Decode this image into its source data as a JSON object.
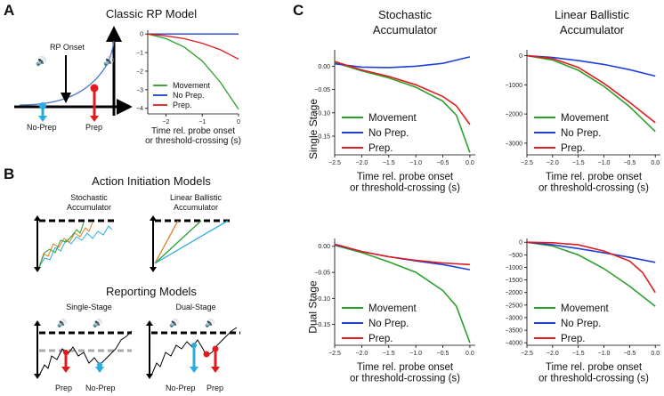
{
  "panel_labels": {
    "a": "A",
    "b": "B",
    "c": "C"
  },
  "panel_a": {
    "title": "Classic RP Model",
    "rp_onset": "RP Onset",
    "no_prep": "No-Prep",
    "prep": "Prep"
  },
  "panel_b": {
    "title_action": "Action Initiation Models",
    "stoch_line1": "Stochastic",
    "stoch_line2": "Accumulator",
    "lba_line1": "Linear Ballistic",
    "lba_line2": "Accumulator",
    "title_reporting": "Reporting Models",
    "single_stage": "Single-Stage",
    "dual_stage": "Dual-Stage",
    "prep": "Prep",
    "no_prep": "No-Prep"
  },
  "panel_c": {
    "col1_line1": "Stochastic",
    "col1_line2": "Accumulator",
    "col2_line1": "Linear Ballistic",
    "col2_line2": "Accumulator",
    "row1": "Single Stage",
    "row2": "Dual Stage"
  },
  "colors": {
    "movement": "#2ca02c",
    "no_prep": "#1f3fd6",
    "prep": "#e41a1c",
    "cyan": "#29abe2"
  },
  "chart_data": [
    {
      "id": "A",
      "type": "line",
      "xlabel_line1": "Time rel. probe onset",
      "xlabel_line2": "or threshold-crossing (s)",
      "xlim": [
        -2.5,
        0
      ],
      "ylim": [
        -4.3,
        0.2
      ],
      "xticks": [
        -2,
        -1,
        0
      ],
      "xtick_labels": [
        "−2",
        "−1",
        "0"
      ],
      "yticks": [
        0,
        -1,
        -2,
        -3,
        -4
      ],
      "ytick_labels": [
        "0",
        "−1",
        "−2",
        "−3",
        "−4"
      ],
      "legend_pos": "bottom-left",
      "series": [
        {
          "name": "Movement",
          "color": "#2ca02c",
          "x": [
            -2.5,
            -2,
            -1.5,
            -1,
            -0.5,
            0
          ],
          "y": [
            0,
            -0.25,
            -0.7,
            -1.45,
            -2.6,
            -4.05
          ]
        },
        {
          "name": "No Prep.",
          "color": "#1f3fd6",
          "x": [
            -2.5,
            -2,
            -1.5,
            -1,
            -0.5,
            0
          ],
          "y": [
            0,
            0,
            0,
            0,
            0,
            0
          ]
        },
        {
          "name": "Prep.",
          "color": "#e41a1c",
          "x": [
            -2.5,
            -2,
            -1.5,
            -1,
            -0.5,
            0
          ],
          "y": [
            0,
            -0.1,
            -0.25,
            -0.5,
            -0.85,
            -1.35
          ]
        }
      ]
    },
    {
      "id": "C-stoch-single",
      "type": "line",
      "xlabel_line1": "Time rel. probe onset",
      "xlabel_line2": "or threshold-crossing (s)",
      "xlim": [
        -2.5,
        0.1
      ],
      "ylim": [
        -0.19,
        0.035
      ],
      "xticks": [
        -2.5,
        -2,
        -1.5,
        -1,
        -0.5,
        0
      ],
      "xtick_labels": [
        "−2.5",
        "−2.0",
        "−1.5",
        "−1.0",
        "−0.5",
        "0.0"
      ],
      "yticks": [
        0,
        -0.05,
        -0.1,
        -0.15
      ],
      "ytick_labels": [
        "0.00",
        "−0.05",
        "−0.10",
        "−0.15"
      ],
      "legend_pos": "bottom-left",
      "series": [
        {
          "name": "Movement",
          "color": "#2ca02c",
          "x": [
            -2.5,
            -2,
            -1.5,
            -1,
            -0.5,
            -0.25,
            0
          ],
          "y": [
            0.008,
            -0.01,
            -0.025,
            -0.045,
            -0.075,
            -0.105,
            -0.185
          ]
        },
        {
          "name": "No Prep.",
          "color": "#1f3fd6",
          "x": [
            -2.5,
            -2,
            -1.5,
            -1,
            -0.5,
            0
          ],
          "y": [
            0.005,
            -0.002,
            -0.003,
            0.0,
            0.006,
            0.02
          ]
        },
        {
          "name": "Prep.",
          "color": "#e41a1c",
          "x": [
            -2.5,
            -2,
            -1.5,
            -1,
            -0.5,
            -0.25,
            0
          ],
          "y": [
            0.01,
            -0.008,
            -0.022,
            -0.04,
            -0.065,
            -0.085,
            -0.125
          ]
        }
      ]
    },
    {
      "id": "C-lba-single",
      "type": "line",
      "xlabel_line1": "Time rel. probe onset",
      "xlabel_line2": "or threshold-crossing (s)",
      "xlim": [
        -2.5,
        0.1
      ],
      "ylim": [
        -3400,
        200
      ],
      "xticks": [
        -2.5,
        -2,
        -1.5,
        -1,
        -0.5,
        0
      ],
      "xtick_labels": [
        "−2.5",
        "−2.0",
        "−1.5",
        "−1.0",
        "−0.5",
        "0.0"
      ],
      "yticks": [
        0,
        -1000,
        -2000,
        -3000
      ],
      "ytick_labels": [
        "0",
        "−1000",
        "−2000",
        "−3000"
      ],
      "legend_pos": "bottom-left",
      "series": [
        {
          "name": "Movement",
          "color": "#2ca02c",
          "x": [
            -2.5,
            -2,
            -1.5,
            -1,
            -0.5,
            0
          ],
          "y": [
            0,
            -150,
            -500,
            -1050,
            -1750,
            -2600
          ]
        },
        {
          "name": "No Prep.",
          "color": "#1f3fd6",
          "x": [
            -2.5,
            -2,
            -1.5,
            -1,
            -0.5,
            0
          ],
          "y": [
            0,
            -60,
            -170,
            -300,
            -480,
            -700
          ]
        },
        {
          "name": "Prep.",
          "color": "#e41a1c",
          "x": [
            -2.5,
            -2,
            -1.5,
            -1,
            -0.5,
            0
          ],
          "y": [
            0,
            -100,
            -400,
            -950,
            -1600,
            -2300
          ]
        }
      ]
    },
    {
      "id": "C-stoch-dual",
      "type": "line",
      "xlabel_line1": "Time rel. probe onset",
      "xlabel_line2": "or threshold-crossing (s)",
      "xlim": [
        -2.5,
        0.1
      ],
      "ylim": [
        -0.19,
        0.015
      ],
      "xticks": [
        -2.5,
        -2,
        -1.5,
        -1,
        -0.5,
        0
      ],
      "xtick_labels": [
        "−2.5",
        "−2.0",
        "−1.5",
        "−1.0",
        "−0.5",
        "0.0"
      ],
      "yticks": [
        0,
        -0.05,
        -0.1,
        -0.15
      ],
      "ytick_labels": [
        "0.00",
        "−0.05",
        "−0.10",
        "−0.15"
      ],
      "legend_pos": "bottom-left",
      "series": [
        {
          "name": "Movement",
          "color": "#2ca02c",
          "x": [
            -2.5,
            -2,
            -1.5,
            -1,
            -0.5,
            -0.25,
            0
          ],
          "y": [
            0.002,
            -0.012,
            -0.03,
            -0.05,
            -0.085,
            -0.115,
            -0.185
          ]
        },
        {
          "name": "No Prep.",
          "color": "#1f3fd6",
          "x": [
            -2.5,
            -2,
            -1.5,
            -1,
            -0.5,
            0
          ],
          "y": [
            0.003,
            -0.01,
            -0.02,
            -0.028,
            -0.035,
            -0.045
          ]
        },
        {
          "name": "Prep.",
          "color": "#e41a1c",
          "x": [
            -2.5,
            -2,
            -1.5,
            -1,
            -0.5,
            0
          ],
          "y": [
            0.004,
            -0.01,
            -0.02,
            -0.027,
            -0.032,
            -0.035
          ]
        }
      ]
    },
    {
      "id": "C-lba-dual",
      "type": "line",
      "xlabel_line1": "Time rel. probe onset",
      "xlabel_line2": "or threshold-crossing (s)",
      "xlim": [
        -2.5,
        0.1
      ],
      "ylim": [
        -4100,
        150
      ],
      "xticks": [
        -2.5,
        -2,
        -1.5,
        -1,
        -0.5,
        0
      ],
      "xtick_labels": [
        "−2.5",
        "−2.0",
        "−1.5",
        "−1.0",
        "−0.5",
        "0.0"
      ],
      "yticks": [
        0,
        -500,
        -1000,
        -1500,
        -2000,
        -2500,
        -3000,
        -3500,
        -4000
      ],
      "ytick_labels": [
        "0",
        "−500",
        "−1000",
        "−1500",
        "−2000",
        "−2500",
        "−3000",
        "−3500",
        "−4000"
      ],
      "legend_pos": "bottom-left",
      "series": [
        {
          "name": "Movement",
          "color": "#2ca02c",
          "x": [
            -2.5,
            -2,
            -1.5,
            -1,
            -0.5,
            0
          ],
          "y": [
            0,
            -150,
            -500,
            -1050,
            -1750,
            -2550
          ]
        },
        {
          "name": "No Prep.",
          "color": "#1f3fd6",
          "x": [
            -2.5,
            -2,
            -1.5,
            -1,
            -0.5,
            0
          ],
          "y": [
            0,
            -100,
            -250,
            -420,
            -600,
            -800
          ]
        },
        {
          "name": "Prep.",
          "color": "#e41a1c",
          "x": [
            -2.5,
            -2,
            -1.5,
            -1,
            -0.5,
            -0.25,
            0
          ],
          "y": [
            0,
            -20,
            -100,
            -350,
            -750,
            -1200,
            -2000
          ]
        }
      ]
    }
  ]
}
